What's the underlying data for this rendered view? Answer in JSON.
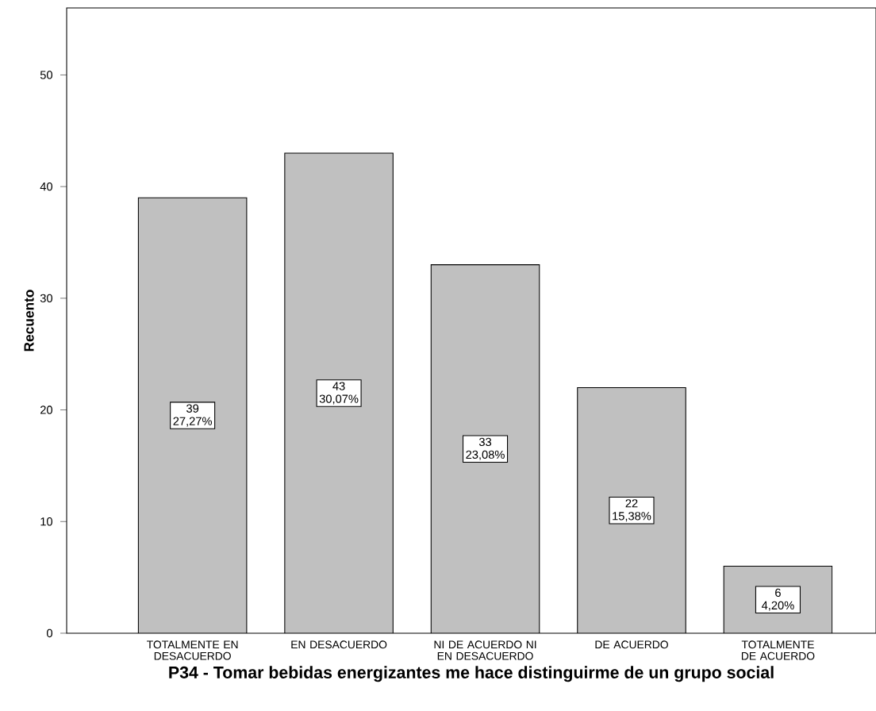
{
  "chart_data": {
    "type": "bar",
    "categories": [
      "TOTALMENTE EN DESACUERDO",
      "EN DESACUERDO",
      "NI DE ACUERDO NI EN DESACUERDO",
      "DE ACUERDO",
      "TOTALMENTE DE ACUERDO"
    ],
    "values": [
      39,
      43,
      33,
      22,
      6
    ],
    "value_labels": [
      "39 27,27%",
      "43 30,07%",
      "33 23,08%",
      "22 15,38%",
      "6 4,20%"
    ],
    "color": "#c0c0c0",
    "ylim": [
      0,
      56
    ],
    "yticks": [
      0,
      10,
      20,
      30,
      40,
      50
    ],
    "ylabel": "Recuento",
    "xlabel": "P34 - Tomar bebidas energizantes me hace distinguirme de un grupo social"
  }
}
